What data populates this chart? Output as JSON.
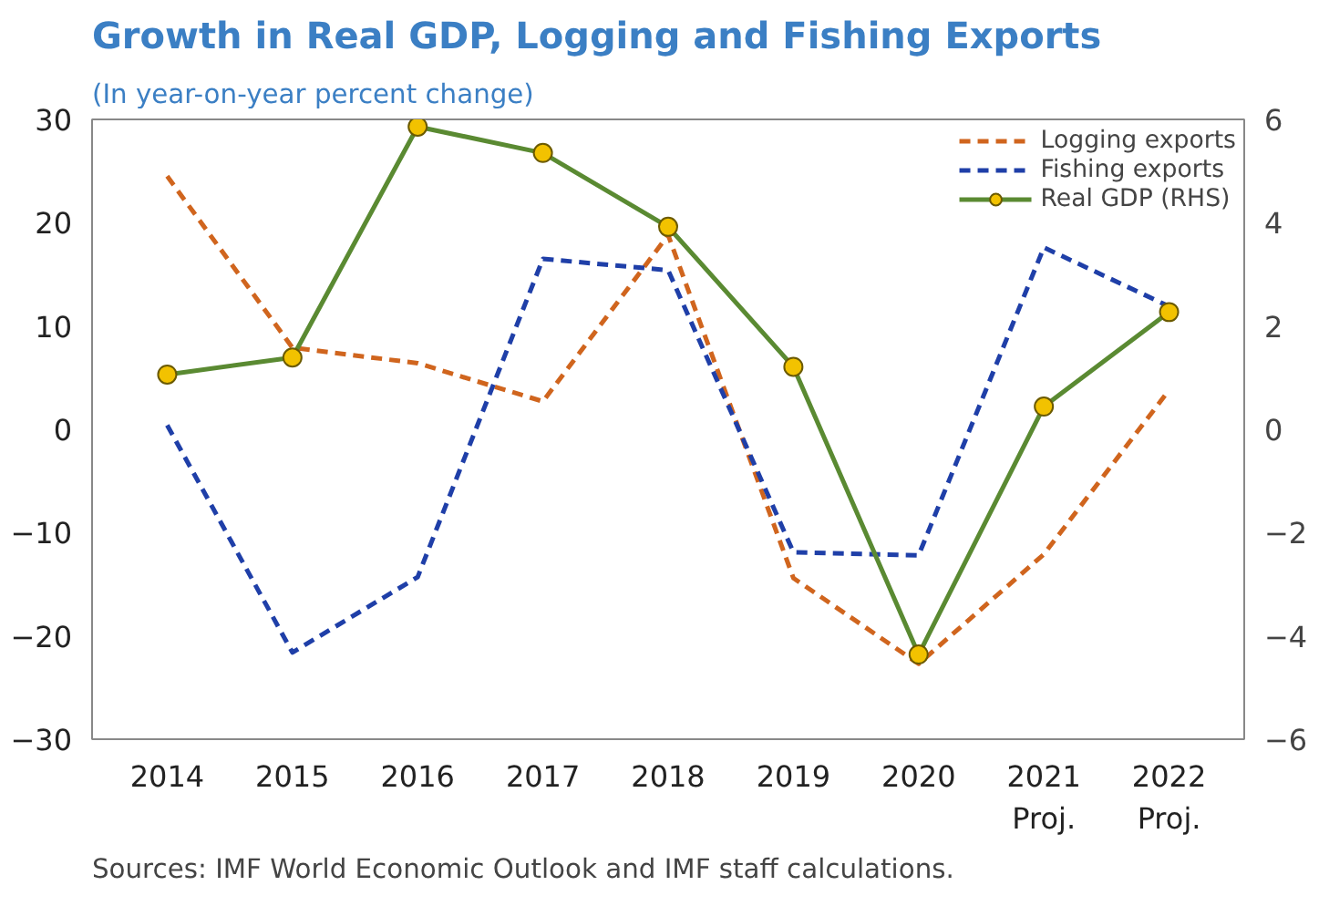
{
  "chart_data": {
    "type": "line",
    "title": "Growth in Real GDP, Logging and Fishing Exports",
    "subtitle": "(In year-on-year percent change)",
    "annotations": [
      "Sources: IMF World Economic Outlook and IMF staff calculations."
    ],
    "categories": [
      "2014",
      "2015",
      "2016",
      "2017",
      "2018",
      "2019",
      "2020",
      "2021\nProj.",
      "2022\nProj."
    ],
    "series": [
      {
        "name": "Logging exports",
        "color": "#d0651e",
        "line_style": "dashed",
        "marker": "none",
        "values": [
          24.5,
          7.9,
          6.4,
          2.7,
          18.8,
          -14.4,
          -22.7,
          -12.1,
          3.8
        ]
      },
      {
        "name": "Fishing exports",
        "color": "#1f3fa8",
        "line_style": "dashed",
        "marker": "none",
        "values": [
          0.4,
          -21.6,
          -14.3,
          16.5,
          15.4,
          -11.9,
          -12.2,
          17.6,
          11.9
        ]
      },
      {
        "name": "Real GDP (RHS)",
        "color": "#5a8a32",
        "line_style": "solid",
        "marker": "circle",
        "axis": "y2",
        "values": [
          1.06,
          1.39,
          5.86,
          5.35,
          3.92,
          1.21,
          -4.36,
          0.44,
          2.27
        ]
      }
    ],
    "ylim": [
      -30,
      30
    ],
    "yticks": [
      -30,
      -20,
      -10,
      0,
      10,
      20,
      30
    ],
    "y2lim": [
      -6,
      6
    ],
    "y2ticks": [
      -6,
      -4,
      -2,
      0,
      2,
      4,
      6
    ],
    "legend": "top right"
  }
}
